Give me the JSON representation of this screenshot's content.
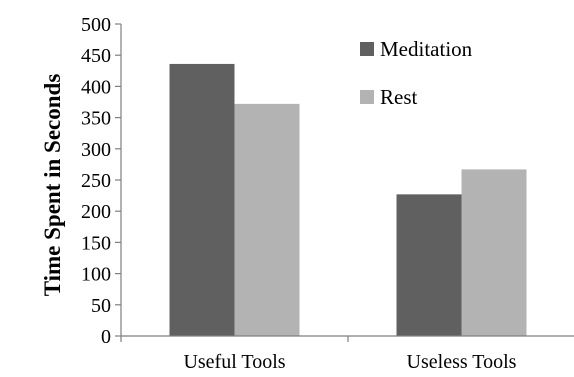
{
  "chart_data": {
    "type": "bar",
    "categories": [
      "Useful Tools",
      "Useless Tools"
    ],
    "series": [
      {
        "name": "Meditation",
        "values": [
          436,
          227
        ],
        "color": "#606060"
      },
      {
        "name": "Rest",
        "values": [
          372,
          267
        ],
        "color": "#b3b3b3"
      }
    ],
    "xlabel": "",
    "ylabel": "Time Spent in Seconds",
    "ylim": [
      0,
      500
    ],
    "yticks": [
      0,
      50,
      100,
      150,
      200,
      250,
      300,
      350,
      400,
      450,
      500
    ],
    "grid": false,
    "legend_position": "top-right"
  }
}
